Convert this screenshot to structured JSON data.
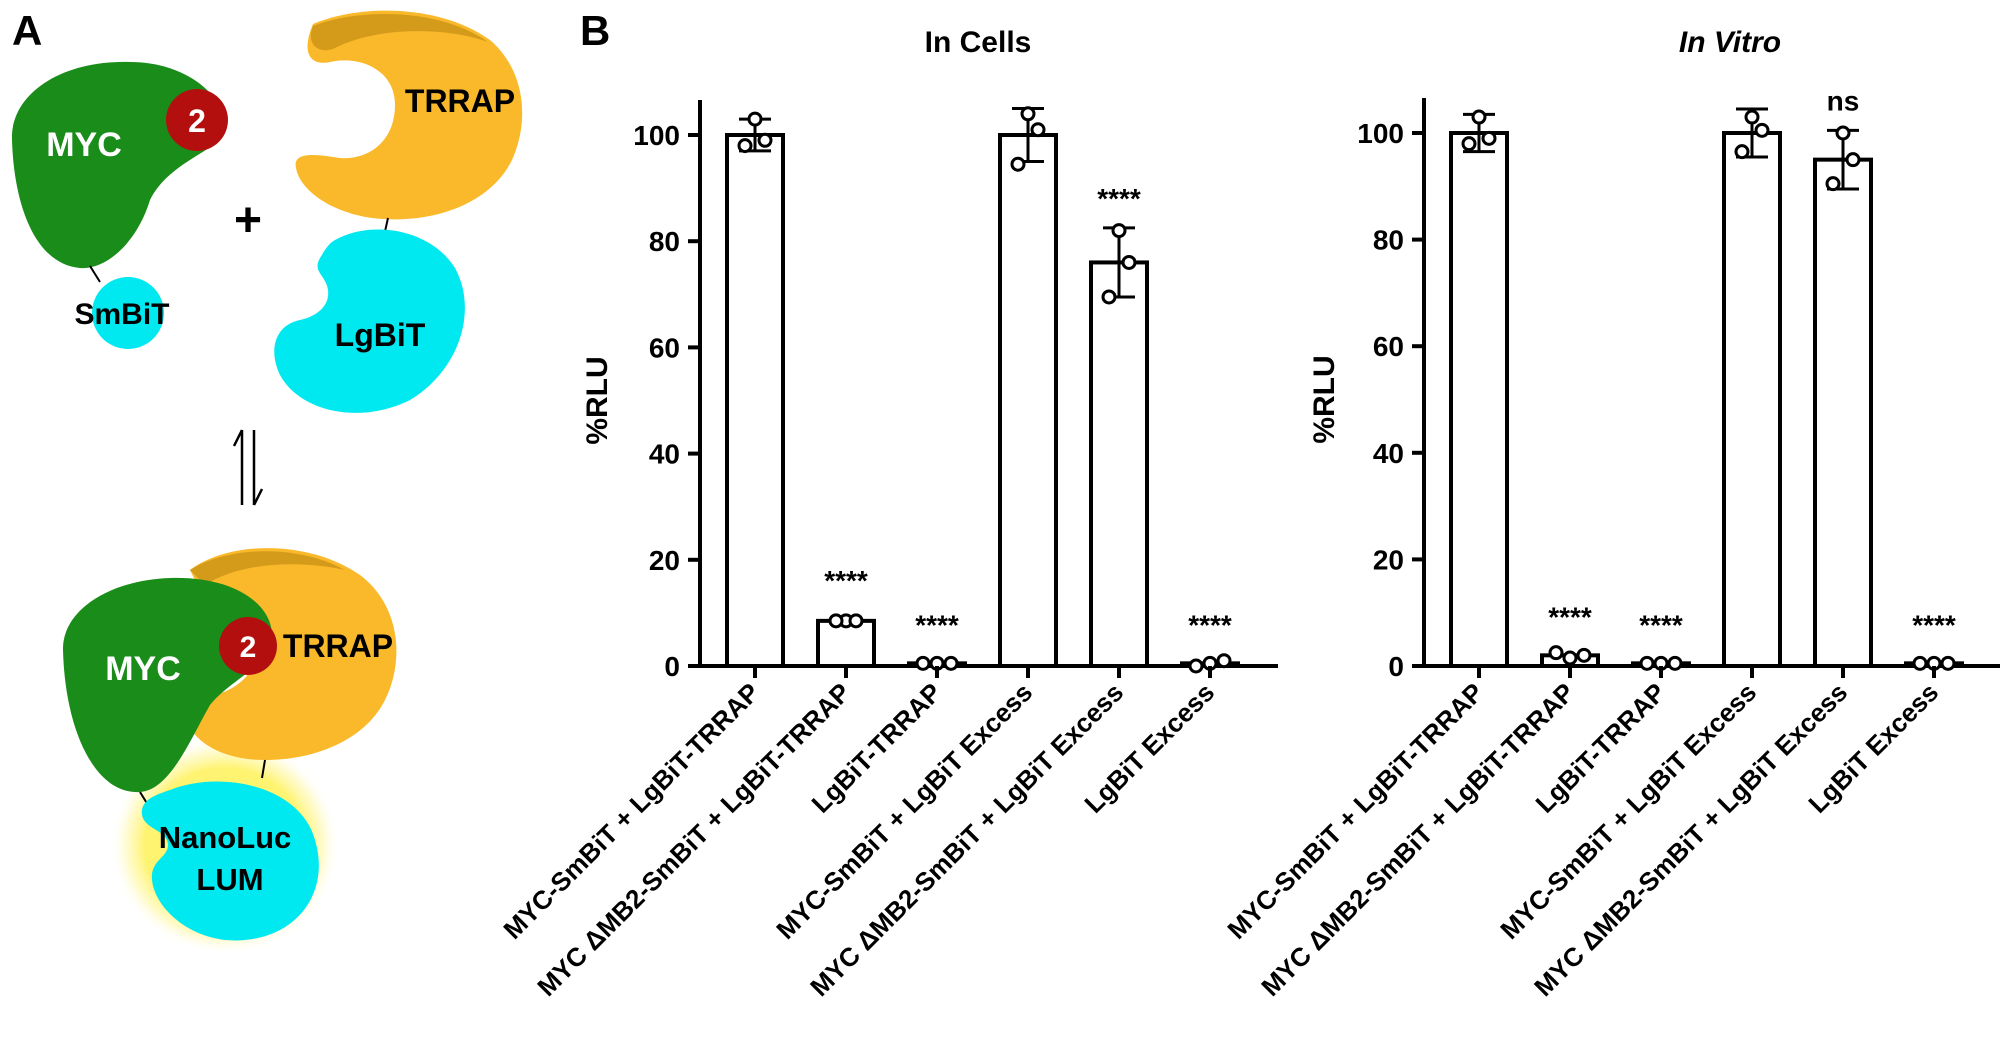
{
  "panel_labels": {
    "a": "A",
    "b": "B"
  },
  "diagram": {
    "myc": "MYC",
    "mb2": "2",
    "trrap": "TRRAP",
    "plus": "+",
    "smbit": "SmBiT",
    "lgbit": "LgBiT",
    "equilibrium": "⇌",
    "nanoluc": "NanoLuc",
    "lum": "LUM"
  },
  "colors": {
    "myc": "#1a8c1a",
    "trrap": "#f9b92a",
    "bit": "#00e8f0",
    "mb2": "#b30f0f",
    "glow": "#fff38a"
  },
  "chart_data": [
    {
      "type": "bar",
      "title": "In Cells",
      "title_italic": false,
      "ylabel": "%RLU",
      "ylim": [
        0,
        100
      ],
      "yticks": [
        "0",
        "20",
        "40",
        "60",
        "80",
        "100"
      ],
      "categories": [
        "MYC-SmBiT + LgBiT-TRRAP",
        "MYC ΔMB2-SmBiT + LgBiT-TRRAP",
        "LgBiT-TRRAP",
        "MYC-SmBiT + LgBiT Excess",
        "MYC ΔMB2-SmBiT + LgBiT Excess",
        "LgBiT Excess"
      ],
      "values": [
        100,
        8.5,
        0.5,
        100,
        76,
        0.5
      ],
      "error": [
        3,
        0.3,
        0.3,
        5,
        6.5,
        0.5
      ],
      "points": [
        [
          103,
          98,
          99
        ],
        [
          8.5,
          8.5,
          8.5
        ],
        [
          0.5,
          0.5,
          0.5
        ],
        [
          104,
          94.5,
          101
        ],
        [
          82,
          69.5,
          76
        ],
        [
          0,
          0.5,
          1
        ]
      ],
      "significance": [
        "",
        "****",
        "****",
        "",
        "****",
        "****"
      ]
    },
    {
      "type": "bar",
      "title": "In Vitro",
      "title_italic": true,
      "ylabel": "%RLU",
      "ylim": [
        0,
        100
      ],
      "yticks": [
        "0",
        "20",
        "40",
        "60",
        "80",
        "100"
      ],
      "categories": [
        "MYC-SmBiT + LgBiT-TRRAP",
        "MYC ΔMB2-SmBiT + LgBiT-TRRAP",
        "LgBiT-TRRAP",
        "MYC-SmBiT + LgBiT Excess",
        "MYC ΔMB2-SmBiT + LgBiT Excess",
        "LgBiT Excess"
      ],
      "values": [
        100,
        2,
        0.5,
        100,
        95,
        0.5
      ],
      "error": [
        3.5,
        0.5,
        0.3,
        4.5,
        5.5,
        0.3
      ],
      "points": [
        [
          103,
          98,
          99
        ],
        [
          2.5,
          1.5,
          2
        ],
        [
          0.5,
          0.5,
          0.5
        ],
        [
          103,
          96.5,
          100.5
        ],
        [
          100,
          90.5,
          95
        ],
        [
          0.5,
          0.5,
          0.5
        ]
      ],
      "significance": [
        "",
        "****",
        "****",
        "",
        "ns",
        "****"
      ]
    }
  ]
}
